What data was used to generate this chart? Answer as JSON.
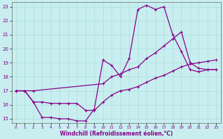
{
  "title": "",
  "xlabel": "Windchill (Refroidissement éolien,°C)",
  "ylabel": "",
  "bg_color": "#c8eef0",
  "grid_color": "#aadddd",
  "line_color": "#880088",
  "xlim": [
    0,
    23
  ],
  "ylim": [
    15,
    23
  ],
  "xticks": [
    0,
    1,
    2,
    3,
    4,
    5,
    6,
    7,
    8,
    9,
    10,
    11,
    12,
    13,
    14,
    15,
    16,
    17,
    18,
    19,
    20,
    21,
    22,
    23
  ],
  "yticks": [
    15,
    16,
    17,
    18,
    19,
    20,
    21,
    22,
    23
  ],
  "line1_x": [
    0,
    1,
    2,
    3,
    4,
    5,
    6,
    7,
    8,
    9,
    10,
    11,
    12,
    13,
    14,
    15,
    16,
    17,
    18,
    19,
    20,
    21,
    22,
    23
  ],
  "line1_y": [
    17.0,
    17.0,
    16.2,
    15.1,
    15.1,
    15.0,
    15.0,
    14.85,
    14.85,
    15.7,
    19.2,
    18.8,
    18.0,
    19.3,
    22.8,
    23.1,
    22.8,
    23.0,
    21.0,
    19.8,
    18.5,
    18.35,
    18.5,
    18.5
  ],
  "line2_x": [
    0,
    2,
    10,
    11,
    12,
    13,
    14,
    15,
    16,
    17,
    18,
    19,
    20,
    21,
    22,
    23
  ],
  "line2_y": [
    17.0,
    17.0,
    17.5,
    18.0,
    18.2,
    18.5,
    18.7,
    19.3,
    19.7,
    20.2,
    20.7,
    21.2,
    19.0,
    18.6,
    18.5,
    18.5
  ],
  "line3_x": [
    0,
    1,
    2,
    3,
    4,
    5,
    6,
    7,
    8,
    9,
    10,
    11,
    12,
    13,
    14,
    15,
    16,
    17,
    18,
    19,
    20,
    21,
    22,
    23
  ],
  "line3_y": [
    17.0,
    17.0,
    16.2,
    16.2,
    16.1,
    16.1,
    16.1,
    16.1,
    15.6,
    15.6,
    16.2,
    16.7,
    17.0,
    17.1,
    17.3,
    17.6,
    17.9,
    18.1,
    18.4,
    18.7,
    18.9,
    19.0,
    19.1,
    19.2
  ]
}
